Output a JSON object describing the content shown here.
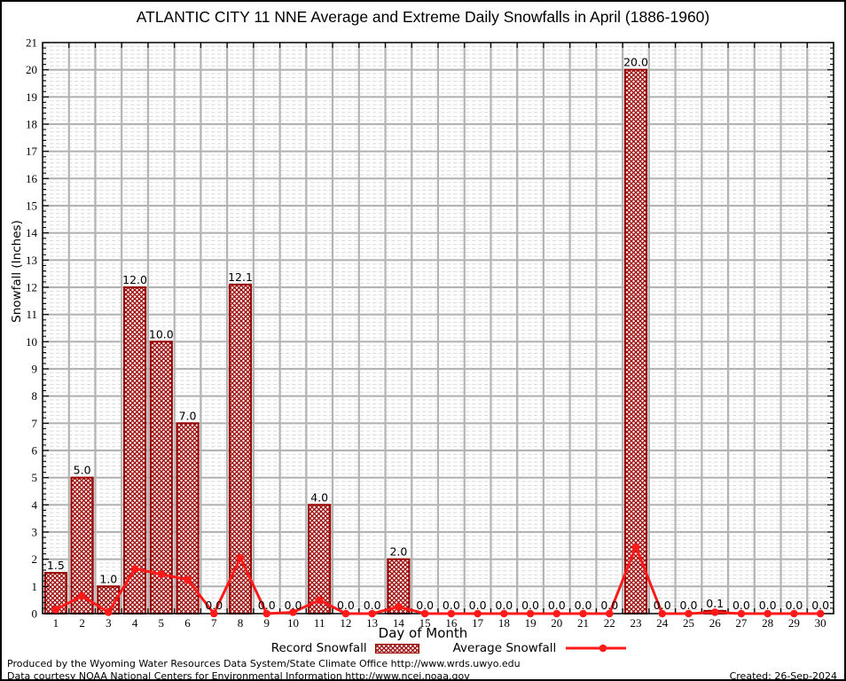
{
  "title": "ATLANTIC CITY 11 NNE Average and Extreme Daily Snowfalls in April (1886-1960)",
  "chart_data": {
    "type": "bar",
    "title": "ATLANTIC CITY 11 NNE Average and Extreme Daily Snowfalls in April (1886-1960)",
    "xlabel": "Day of Month",
    "ylabel": "Snowfall (Inches)",
    "x": [
      1,
      2,
      3,
      4,
      5,
      6,
      7,
      8,
      9,
      10,
      11,
      12,
      13,
      14,
      15,
      16,
      17,
      18,
      19,
      20,
      21,
      22,
      23,
      24,
      25,
      26,
      27,
      28,
      29,
      30
    ],
    "ylim": [
      0,
      21
    ],
    "yticks": [
      0,
      1,
      2,
      3,
      4,
      5,
      6,
      7,
      8,
      9,
      10,
      11,
      12,
      13,
      14,
      15,
      16,
      17,
      18,
      19,
      20,
      21
    ],
    "grid": true,
    "legend_position": "bottom",
    "series": [
      {
        "name": "Record Snowfall",
        "type": "bar",
        "color": "#990000",
        "values": [
          1.5,
          5,
          1,
          12,
          10,
          7,
          0,
          12.1,
          0,
          0,
          4,
          0,
          0,
          2,
          0,
          0,
          0,
          0,
          0,
          0,
          0,
          0,
          20,
          0,
          0,
          0.1,
          0,
          0,
          0,
          0
        ],
        "labels": [
          "1.5",
          "5.0",
          "1.0",
          "12.0",
          "10.0",
          "7.0",
          "0.0",
          "12.1",
          "0.0",
          "0.0",
          "4.0",
          "0.0",
          "0.0",
          "2.0",
          "0.0",
          "0.0",
          "0.0",
          "0.0",
          "0.0",
          "0.0",
          "0.0",
          "0.0",
          "20.0",
          "0.0",
          "0.0",
          "0.1",
          "0.0",
          "0.0",
          "0.0",
          "0.0"
        ]
      },
      {
        "name": "Average Snowfall",
        "type": "line",
        "color": "#ff1a1a",
        "values": [
          0.15,
          0.65,
          0.05,
          1.65,
          1.45,
          1.25,
          0,
          2.05,
          0,
          0.05,
          0.5,
          0,
          0,
          0.25,
          0,
          0,
          0,
          0,
          0,
          0,
          0,
          0,
          2.45,
          0,
          0,
          0.05,
          0,
          0,
          0,
          0
        ]
      }
    ]
  },
  "colors": {
    "bar": "#990000",
    "line": "#ff1a1a",
    "grid_major": "#b3b3b3",
    "grid_minor": "#d9d9d9",
    "frame": "#000000"
  },
  "footer": {
    "line1": "Produced by the Wyoming Water Resources Data System/State Climate Office http://www.wrds.uwyo.edu",
    "line2": "Data courtesy NOAA National Centers for Environmental Information http://www.ncei.noaa.gov",
    "created": "Created: 26-Sep-2024"
  }
}
